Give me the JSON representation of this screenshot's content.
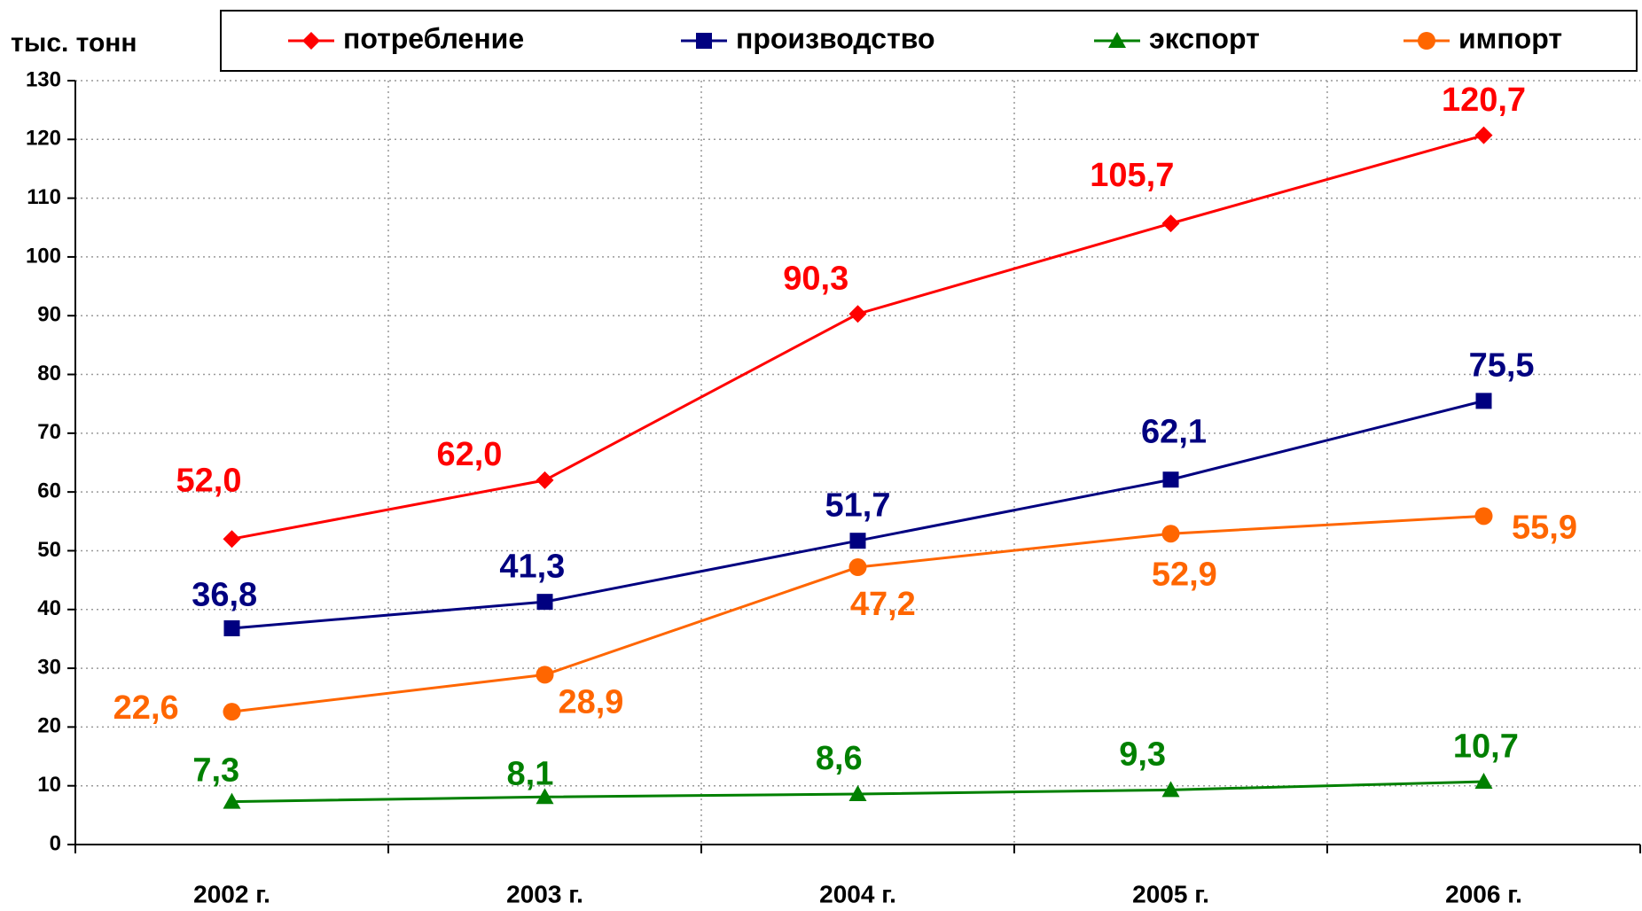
{
  "chart_data": {
    "type": "line",
    "y_label": "тыс. тонн",
    "categories": [
      "2002 г.",
      "2003 г.",
      "2004 г.",
      "2005 г.",
      "2006 г."
    ],
    "series": [
      {
        "name": "потребление",
        "color": "#ff0000",
        "marker": "diamond",
        "values": [
          52.0,
          62.0,
          90.3,
          105.7,
          120.7
        ],
        "value_labels": [
          "52,0",
          "62,0",
          "90,3",
          "105,7",
          "120,7"
        ]
      },
      {
        "name": "производство",
        "color": "#000080",
        "marker": "square",
        "values": [
          36.8,
          41.3,
          51.7,
          62.1,
          75.5
        ],
        "value_labels": [
          "36,8",
          "41,3",
          "51,7",
          "62,1",
          "75,5"
        ]
      },
      {
        "name": "экспорт",
        "color": "#008000",
        "marker": "triangle",
        "values": [
          7.3,
          8.1,
          8.6,
          9.3,
          10.7
        ],
        "value_labels": [
          "7,3",
          "8,1",
          "8,6",
          "9,3",
          "10,7"
        ]
      },
      {
        "name": "импорт",
        "color": "#ff6600",
        "marker": "circle",
        "values": [
          22.6,
          28.9,
          47.2,
          52.9,
          55.9
        ],
        "value_labels": [
          "22,6",
          "28,9",
          "47,2",
          "52,9",
          "55,9"
        ]
      }
    ],
    "ylim": [
      0,
      130
    ],
    "yticks": [
      0,
      10,
      20,
      30,
      40,
      50,
      60,
      70,
      80,
      90,
      100,
      110,
      120,
      130
    ],
    "grid": true,
    "legend": "top"
  }
}
